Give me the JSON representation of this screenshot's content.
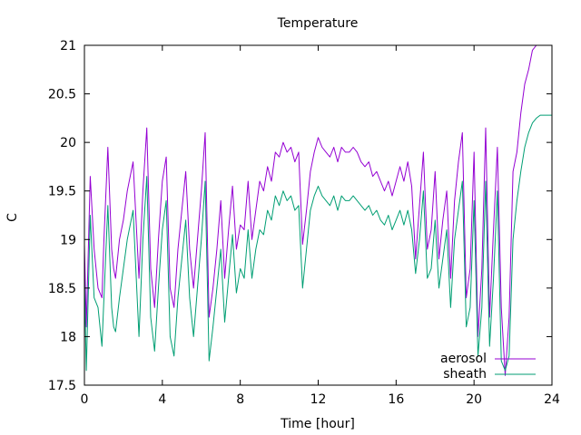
{
  "chart_data": {
    "type": "line",
    "title": "Temperature",
    "xlabel": "Time [hour]",
    "ylabel": "C",
    "xlim": [
      0,
      24
    ],
    "ylim": [
      17.5,
      21
    ],
    "grid": false,
    "legend_position": "bottom-right",
    "x_ticks": [
      0,
      4,
      8,
      12,
      16,
      20,
      24
    ],
    "x_tick_labels": [
      "0",
      "4",
      "8",
      "12",
      "16",
      "20",
      "24"
    ],
    "y_ticks": [
      17.5,
      18,
      18.5,
      19,
      19.5,
      20,
      20.5,
      21
    ],
    "y_tick_labels": [
      "17.5",
      "18",
      "18.5",
      "19",
      "19.5",
      "20",
      "20.5",
      "21"
    ],
    "series": [
      {
        "name": "aerosol",
        "color": "#9400d3",
        "x": [
          0,
          0.1,
          0.3,
          0.5,
          0.7,
          0.9,
          1.0,
          1.2,
          1.4,
          1.5,
          1.6,
          1.8,
          2.0,
          2.2,
          2.5,
          2.8,
          3.0,
          3.2,
          3.4,
          3.6,
          3.8,
          4.0,
          4.2,
          4.4,
          4.6,
          4.8,
          5.0,
          5.2,
          5.4,
          5.6,
          5.8,
          6.0,
          6.2,
          6.4,
          6.6,
          6.8,
          7.0,
          7.2,
          7.4,
          7.6,
          7.8,
          8.0,
          8.2,
          8.4,
          8.6,
          8.8,
          9.0,
          9.2,
          9.4,
          9.6,
          9.8,
          10.0,
          10.2,
          10.4,
          10.6,
          10.8,
          11.0,
          11.2,
          11.4,
          11.6,
          11.8,
          12.0,
          12.2,
          12.4,
          12.6,
          12.8,
          13.0,
          13.2,
          13.4,
          13.6,
          13.8,
          14.0,
          14.2,
          14.4,
          14.6,
          14.8,
          15.0,
          15.2,
          15.4,
          15.6,
          15.8,
          16.0,
          16.2,
          16.4,
          16.6,
          16.8,
          17.0,
          17.2,
          17.4,
          17.6,
          17.8,
          18.0,
          18.2,
          18.4,
          18.6,
          18.8,
          19.0,
          19.2,
          19.4,
          19.6,
          19.8,
          20.0,
          20.2,
          20.4,
          20.6,
          20.8,
          21.0,
          21.2,
          21.4,
          21.6,
          21.8,
          22.0,
          22.2,
          22.4,
          22.6,
          22.8,
          23.0,
          23.2,
          23.4,
          23.6,
          23.8,
          24.0
        ],
        "values": [
          18.95,
          18.1,
          19.65,
          18.9,
          18.5,
          18.4,
          19.0,
          19.95,
          18.9,
          18.7,
          18.6,
          19.0,
          19.2,
          19.5,
          19.8,
          18.6,
          19.5,
          20.15,
          18.7,
          18.3,
          19.0,
          19.6,
          19.85,
          18.5,
          18.3,
          18.9,
          19.3,
          19.7,
          18.9,
          18.5,
          19.0,
          19.5,
          20.1,
          18.2,
          18.5,
          18.9,
          19.4,
          18.6,
          19.1,
          19.55,
          18.9,
          19.15,
          19.1,
          19.6,
          19.0,
          19.3,
          19.6,
          19.5,
          19.75,
          19.6,
          19.9,
          19.85,
          20.0,
          19.9,
          19.95,
          19.8,
          19.9,
          18.95,
          19.3,
          19.7,
          19.9,
          20.05,
          19.95,
          19.9,
          19.85,
          19.95,
          19.8,
          19.95,
          19.9,
          19.9,
          19.95,
          19.9,
          19.8,
          19.75,
          19.8,
          19.65,
          19.7,
          19.6,
          19.5,
          19.6,
          19.45,
          19.6,
          19.75,
          19.6,
          19.8,
          19.55,
          18.8,
          19.35,
          19.9,
          18.9,
          19.1,
          19.7,
          18.8,
          19.2,
          19.5,
          18.6,
          19.4,
          19.8,
          20.1,
          18.4,
          18.7,
          19.9,
          18.0,
          18.7,
          20.15,
          18.2,
          19.1,
          19.95,
          18.3,
          17.6,
          18.2,
          19.7,
          19.9,
          20.3,
          20.6,
          20.75,
          20.95,
          21.0,
          21.0,
          21.0,
          21.0,
          21.0
        ],
        "note_x_units": "hours"
      },
      {
        "name": "sheath",
        "color": "#009e73",
        "x": [
          0,
          0.1,
          0.3,
          0.5,
          0.7,
          0.9,
          1.0,
          1.2,
          1.4,
          1.5,
          1.6,
          1.8,
          2.0,
          2.2,
          2.5,
          2.8,
          3.0,
          3.2,
          3.4,
          3.6,
          3.8,
          4.0,
          4.2,
          4.4,
          4.6,
          4.8,
          5.0,
          5.2,
          5.4,
          5.6,
          5.8,
          6.0,
          6.2,
          6.4,
          6.6,
          6.8,
          7.0,
          7.2,
          7.4,
          7.6,
          7.8,
          8.0,
          8.2,
          8.4,
          8.6,
          8.8,
          9.0,
          9.2,
          9.4,
          9.6,
          9.8,
          10.0,
          10.2,
          10.4,
          10.6,
          10.8,
          11.0,
          11.2,
          11.4,
          11.6,
          11.8,
          12.0,
          12.2,
          12.4,
          12.6,
          12.8,
          13.0,
          13.2,
          13.4,
          13.6,
          13.8,
          14.0,
          14.2,
          14.4,
          14.6,
          14.8,
          15.0,
          15.2,
          15.4,
          15.6,
          15.8,
          16.0,
          16.2,
          16.4,
          16.6,
          16.8,
          17.0,
          17.2,
          17.4,
          17.6,
          17.8,
          18.0,
          18.2,
          18.4,
          18.6,
          18.8,
          19.0,
          19.2,
          19.4,
          19.6,
          19.8,
          20.0,
          20.2,
          20.4,
          20.6,
          20.8,
          21.0,
          21.2,
          21.4,
          21.6,
          21.8,
          22.0,
          22.2,
          22.4,
          22.6,
          22.8,
          23.0,
          23.2,
          23.4,
          23.6,
          23.8,
          24.0
        ],
        "values": [
          18.6,
          17.65,
          19.25,
          18.4,
          18.3,
          17.9,
          18.4,
          19.35,
          18.3,
          18.1,
          18.05,
          18.4,
          18.7,
          19.0,
          19.3,
          18.0,
          19.0,
          19.65,
          18.2,
          17.85,
          18.5,
          19.1,
          19.4,
          18.0,
          17.8,
          18.4,
          18.8,
          19.2,
          18.4,
          18.0,
          18.5,
          19.0,
          19.6,
          17.75,
          18.1,
          18.5,
          18.9,
          18.15,
          18.6,
          19.05,
          18.45,
          18.7,
          18.6,
          19.1,
          18.6,
          18.9,
          19.1,
          19.05,
          19.3,
          19.2,
          19.45,
          19.35,
          19.5,
          19.4,
          19.45,
          19.3,
          19.35,
          18.5,
          18.9,
          19.3,
          19.45,
          19.55,
          19.45,
          19.4,
          19.35,
          19.45,
          19.3,
          19.45,
          19.4,
          19.4,
          19.45,
          19.4,
          19.35,
          19.3,
          19.35,
          19.25,
          19.3,
          19.2,
          19.15,
          19.25,
          19.1,
          19.2,
          19.3,
          19.15,
          19.3,
          19.1,
          18.65,
          19.0,
          19.5,
          18.6,
          18.7,
          19.2,
          18.5,
          18.8,
          19.1,
          18.3,
          19.0,
          19.3,
          19.6,
          18.1,
          18.3,
          19.4,
          17.8,
          18.3,
          19.6,
          17.9,
          18.6,
          19.5,
          17.75,
          17.65,
          17.8,
          19.0,
          19.4,
          19.7,
          19.95,
          20.1,
          20.2,
          20.25,
          20.28,
          20.28,
          20.28,
          20.28
        ]
      }
    ]
  }
}
